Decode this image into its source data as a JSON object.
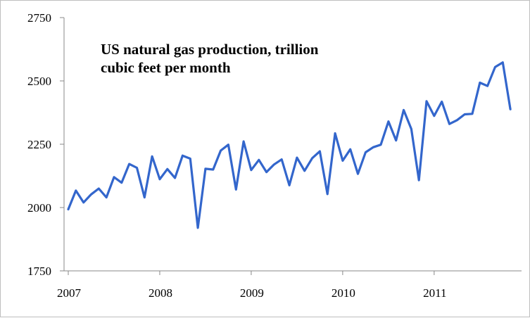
{
  "chart_data": {
    "type": "line",
    "title_lines": [
      "US natural gas production, trillion",
      "cubic feet per month"
    ],
    "xlabel": "",
    "ylabel": "",
    "ylim": [
      1750,
      2750
    ],
    "yticks": [
      1750,
      2000,
      2250,
      2500,
      2750
    ],
    "xticks": [
      "2007",
      "2008",
      "2009",
      "2010",
      "2011"
    ],
    "x_start": "2007-01",
    "x_end": "2011-11",
    "grid": false,
    "legend": "none",
    "line_color": "#3366cc",
    "series": [
      {
        "values": [
          1993,
          2067,
          2020,
          2052,
          2075,
          2040,
          2120,
          2098,
          2172,
          2157,
          2040,
          2202,
          2112,
          2152,
          2117,
          2205,
          2193,
          1920,
          2153,
          2150,
          2225,
          2248,
          2071,
          2261,
          2148,
          2188,
          2140,
          2170,
          2190,
          2088,
          2197,
          2145,
          2195,
          2222,
          2053,
          2293,
          2185,
          2230,
          2133,
          2218,
          2238,
          2248,
          2340,
          2265,
          2385,
          2310,
          2108,
          2420,
          2362,
          2418,
          2330,
          2345,
          2368,
          2370,
          2493,
          2480,
          2555,
          2573,
          2388
        ]
      }
    ]
  }
}
